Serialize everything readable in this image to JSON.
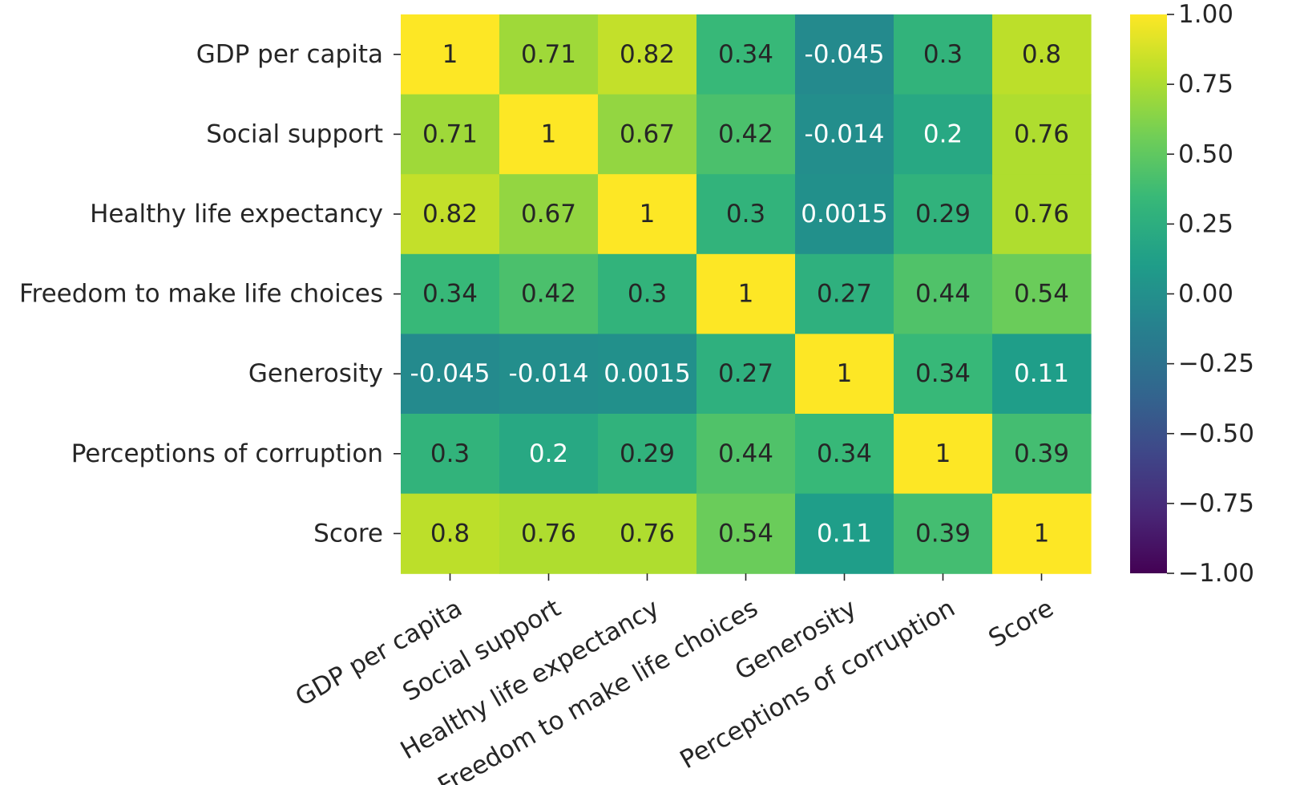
{
  "chart_data": {
    "type": "heatmap",
    "title": "",
    "xlabel": "",
    "ylabel": "",
    "row_labels": [
      "GDP per capita",
      "Social support",
      "Healthy life expectancy",
      "Freedom to make life choices",
      "Generosity",
      "Perceptions of corruption",
      "Score"
    ],
    "col_labels": [
      "GDP per capita",
      "Social support",
      "Healthy life expectancy",
      "Freedom to make life choices",
      "Generosity",
      "Perceptions of corruption",
      "Score"
    ],
    "values": [
      [
        1,
        0.71,
        0.82,
        0.34,
        -0.045,
        0.3,
        0.8
      ],
      [
        0.71,
        1,
        0.67,
        0.42,
        -0.014,
        0.2,
        0.76
      ],
      [
        0.82,
        0.67,
        1,
        0.3,
        0.0015,
        0.29,
        0.76
      ],
      [
        0.34,
        0.42,
        0.3,
        1,
        0.27,
        0.44,
        0.54
      ],
      [
        -0.045,
        -0.014,
        0.0015,
        0.27,
        1,
        0.34,
        0.11
      ],
      [
        0.3,
        0.2,
        0.29,
        0.44,
        0.34,
        1,
        0.39
      ],
      [
        0.8,
        0.76,
        0.76,
        0.54,
        0.11,
        0.39,
        1
      ]
    ],
    "cell_labels": [
      [
        "1",
        "0.71",
        "0.82",
        "0.34",
        "-0.045",
        "0.3",
        "0.8"
      ],
      [
        "0.71",
        "1",
        "0.67",
        "0.42",
        "-0.014",
        "0.2",
        "0.76"
      ],
      [
        "0.82",
        "0.67",
        "1",
        "0.3",
        "0.0015",
        "0.29",
        "0.76"
      ],
      [
        "0.34",
        "0.42",
        "0.3",
        "1",
        "0.27",
        "0.44",
        "0.54"
      ],
      [
        "-0.045",
        "-0.014",
        "0.0015",
        "0.27",
        "1",
        "0.34",
        "0.11"
      ],
      [
        "0.3",
        "0.2",
        "0.29",
        "0.44",
        "0.34",
        "1",
        "0.39"
      ],
      [
        "0.8",
        "0.76",
        "0.76",
        "0.54",
        "0.11",
        "0.39",
        "1"
      ]
    ],
    "colormap": "viridis",
    "vmin": -1.0,
    "vmax": 1.0,
    "colorbar_ticks": [
      1.0,
      0.75,
      0.5,
      0.25,
      0.0,
      -0.25,
      -0.5,
      -0.75,
      -1.0
    ],
    "colorbar_tick_labels": [
      "1.00",
      "0.75",
      "0.50",
      "0.25",
      "0.00",
      "−0.25",
      "−0.50",
      "−0.75",
      "−1.00"
    ],
    "colors": {
      "text_dark": "#262626",
      "text_light": "#ffffff",
      "viridis_stops": [
        "#440154",
        "#482878",
        "#3e4989",
        "#31688e",
        "#26828e",
        "#1f9e89",
        "#35b779",
        "#6ece58",
        "#b5de2b",
        "#fde725"
      ]
    }
  }
}
